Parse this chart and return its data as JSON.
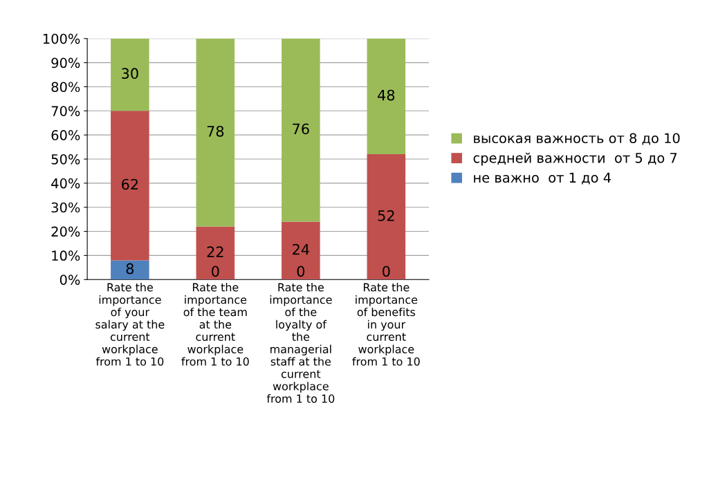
{
  "chart_data": {
    "type": "bar",
    "stacked": true,
    "categories": [
      "Rate the\nimportance\nof your\nsalary at the\ncurrent\nworkplace\nfrom 1 to 10",
      "Rate the\nimportance\nof the team\nat the\ncurrent\nworkplace\nfrom 1 to 10",
      "Rate the\nimportance\nof the\nloyalty of\nthe\nmanagerial\nstaff at the\ncurrent\nworkplace\nfrom 1 to 10",
      "Rate the\nimportance\nof benefits\nin your\ncurrent\nworkplace\nfrom 1 to 10"
    ],
    "series": [
      {
        "name": "не важно  от 1 до 4",
        "color": "#4f81bd",
        "values": [
          8,
          0,
          0,
          0
        ],
        "value_labels": [
          "8",
          "0",
          "0",
          "0"
        ]
      },
      {
        "name": "средней важности  от 5 до 7",
        "color": "#c0504d",
        "values": [
          62,
          22,
          24,
          52
        ],
        "value_labels": [
          "62",
          "22",
          "24",
          "52"
        ]
      },
      {
        "name": "высокая важность от 8 до 10",
        "color": "#9bbb59",
        "values": [
          30,
          78,
          76,
          48
        ],
        "value_labels": [
          "30",
          "78",
          "76",
          "48"
        ]
      }
    ],
    "ylim": [
      0,
      100
    ],
    "yticks": [
      {
        "value": 0,
        "label": "0%"
      },
      {
        "value": 10,
        "label": "10%"
      },
      {
        "value": 20,
        "label": "20%"
      },
      {
        "value": 30,
        "label": "30%"
      },
      {
        "value": 40,
        "label": "40%"
      },
      {
        "value": 50,
        "label": "50%"
      },
      {
        "value": 60,
        "label": "60%"
      },
      {
        "value": 70,
        "label": "70%"
      },
      {
        "value": 80,
        "label": "80%"
      },
      {
        "value": 90,
        "label": "90%"
      },
      {
        "value": 100,
        "label": "100%"
      }
    ],
    "grid": "y",
    "legend": "right"
  }
}
